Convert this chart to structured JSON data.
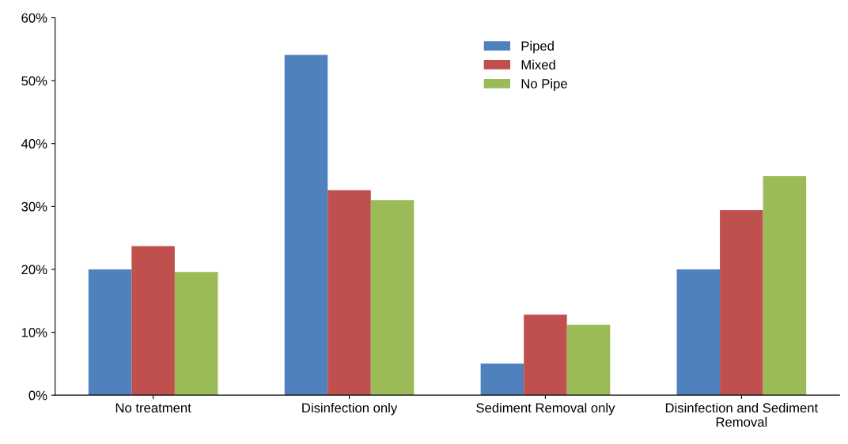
{
  "chart_data": {
    "type": "bar",
    "categories": [
      "No treatment",
      "Disinfection only",
      "Sediment Removal only",
      "Disinfection and Sediment Removal"
    ],
    "series": [
      {
        "name": "Piped",
        "color": "#4f81bd",
        "values": [
          20.0,
          54.1,
          5.0,
          20.0
        ]
      },
      {
        "name": "Mixed",
        "color": "#c0504d",
        "values": [
          23.7,
          32.6,
          12.8,
          29.4
        ]
      },
      {
        "name": "No Pipe",
        "color": "#9bbb59",
        "values": [
          19.6,
          31.0,
          11.2,
          34.8
        ]
      }
    ],
    "ylim": [
      0,
      60
    ],
    "yticks": [
      {
        "value": 0,
        "label": "0%"
      },
      {
        "value": 10,
        "label": "10%"
      },
      {
        "value": 20,
        "label": "20%"
      },
      {
        "value": 30,
        "label": "30%"
      },
      {
        "value": 40,
        "label": "40%"
      },
      {
        "value": 50,
        "label": "50%"
      },
      {
        "value": 60,
        "label": "60%"
      }
    ],
    "grid": false,
    "legend": "top"
  }
}
